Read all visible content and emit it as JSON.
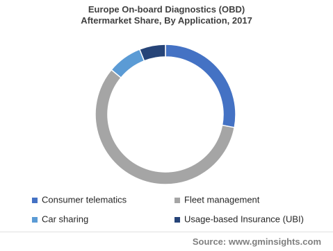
{
  "chart_data": {
    "type": "donut",
    "title": "Europe On-board Diagnostics (OBD) Aftermarket Share, By Application, 2017",
    "categories": [
      "Consumer telematics",
      "Fleet management",
      "Car sharing",
      "Usage-based Insurance (UBI)"
    ],
    "values": [
      28,
      58,
      8,
      6
    ],
    "colors": [
      "#4472c4",
      "#a5a5a5",
      "#5b9bd5",
      "#264478"
    ],
    "legend": "bottom",
    "source": "Source: www.gminsights.com"
  }
}
